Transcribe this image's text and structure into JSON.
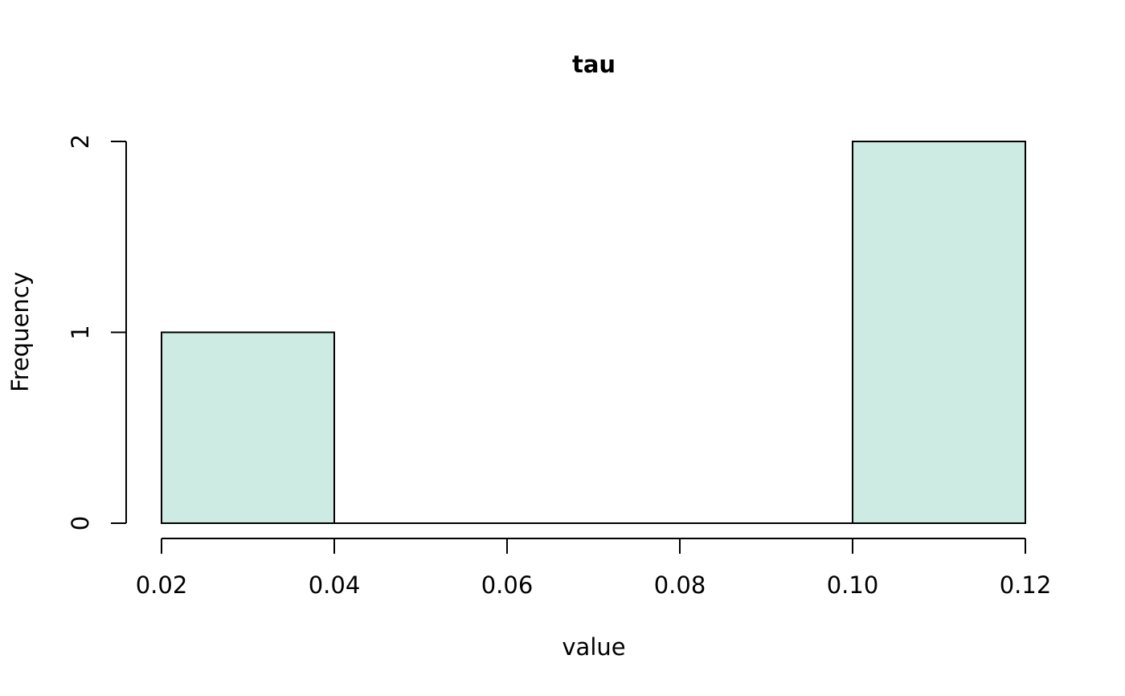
{
  "chart_data": {
    "type": "bar",
    "title": "tau",
    "xlabel": "value",
    "ylabel": "Frequency",
    "bins": [
      {
        "start": 0.02,
        "end": 0.04,
        "count": 1
      },
      {
        "start": 0.04,
        "end": 0.06,
        "count": 0
      },
      {
        "start": 0.06,
        "end": 0.08,
        "count": 0
      },
      {
        "start": 0.08,
        "end": 0.1,
        "count": 0
      },
      {
        "start": 0.1,
        "end": 0.12,
        "count": 2
      }
    ],
    "xlim": [
      0.02,
      0.12
    ],
    "ylim": [
      0,
      2
    ],
    "xticks": [
      0.02,
      0.04,
      0.06,
      0.08,
      0.1,
      0.12
    ],
    "xtick_labels": [
      "0.02",
      "0.04",
      "0.06",
      "0.08",
      "0.10",
      "0.12"
    ],
    "yticks": [
      0,
      1,
      2
    ],
    "ytick_labels": [
      "0",
      "1",
      "2"
    ],
    "bar_color": "#cdebe2",
    "edge_color": "#000000",
    "grid": false,
    "legend": "none"
  }
}
